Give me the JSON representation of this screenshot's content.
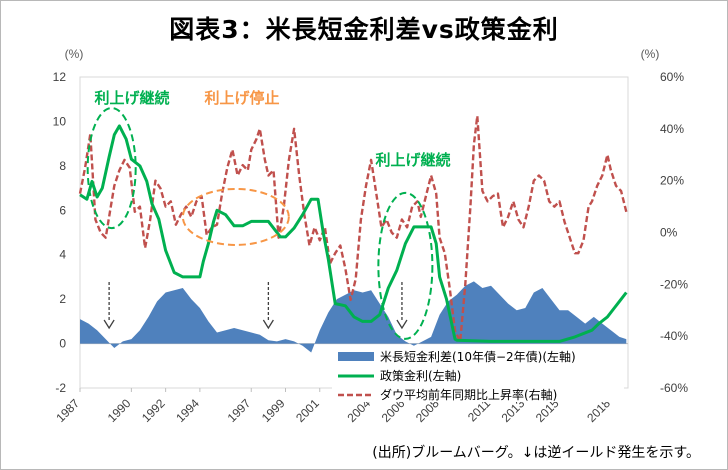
{
  "title": "図表3：米長短金利差vs政策金利",
  "source_note": "(出所)ブルームバーグ。↓は逆イールド発生を示す。",
  "chart_data": {
    "type": "area+line",
    "x_ticks": [
      "1987",
      "1990",
      "1992",
      "1994",
      "1997",
      "1999",
      "2001",
      "2004",
      "2006",
      "2008",
      "2011",
      "2013",
      "2015",
      "2018"
    ],
    "x_range": [
      1987.0,
      2019.0
    ],
    "left_axis": {
      "unit": "(%)",
      "ylim": [
        -2,
        12
      ],
      "ticks": [
        -2,
        0,
        2,
        4,
        6,
        8,
        10,
        12
      ]
    },
    "right_axis": {
      "unit": "(%)",
      "ylim": [
        -60,
        60
      ],
      "ticks": [
        "-60%",
        "-40%",
        "-20%",
        "0%",
        "20%",
        "40%",
        "60%"
      ]
    },
    "colors": {
      "spread": "#4f81bd",
      "policy": "#00b050",
      "dow": "#c0504d",
      "cont": "#00b050",
      "stop": "#f79646"
    },
    "legend": [
      "米長短金利差(10年債−2年債)(左軸)",
      "政策金利(左軸)",
      "ダウ平均前年同期比上昇率(右軸)"
    ],
    "annotations": {
      "cont1": "利上げ継続",
      "stop": "利上げ停止",
      "cont2": "利上げ継続"
    },
    "inversion_arrows_years": [
      1988.7,
      1998.0,
      2005.8
    ],
    "series": [
      {
        "name": "米長短金利差(10年債−2年債)(左軸)",
        "axis": "left",
        "style": "area",
        "points": [
          [
            1987.0,
            1.1
          ],
          [
            1987.5,
            0.9
          ],
          [
            1988.0,
            0.6
          ],
          [
            1988.5,
            0.2
          ],
          [
            1989.0,
            -0.2
          ],
          [
            1989.5,
            0.1
          ],
          [
            1990.0,
            0.2
          ],
          [
            1990.5,
            0.6
          ],
          [
            1991.0,
            1.2
          ],
          [
            1991.5,
            1.9
          ],
          [
            1992.0,
            2.3
          ],
          [
            1992.5,
            2.4
          ],
          [
            1993.0,
            2.5
          ],
          [
            1993.5,
            2.0
          ],
          [
            1994.0,
            1.6
          ],
          [
            1994.5,
            1.0
          ],
          [
            1995.0,
            0.5
          ],
          [
            1995.5,
            0.6
          ],
          [
            1996.0,
            0.7
          ],
          [
            1996.5,
            0.6
          ],
          [
            1997.0,
            0.5
          ],
          [
            1997.5,
            0.4
          ],
          [
            1998.0,
            0.15
          ],
          [
            1998.5,
            0.1
          ],
          [
            1999.0,
            0.2
          ],
          [
            1999.5,
            0.1
          ],
          [
            2000.0,
            -0.1
          ],
          [
            2000.5,
            -0.4
          ],
          [
            2001.0,
            0.6
          ],
          [
            2001.5,
            1.4
          ],
          [
            2002.0,
            2.0
          ],
          [
            2002.5,
            2.2
          ],
          [
            2003.0,
            2.4
          ],
          [
            2003.5,
            2.3
          ],
          [
            2004.0,
            2.4
          ],
          [
            2004.5,
            1.8
          ],
          [
            2005.0,
            1.2
          ],
          [
            2005.5,
            0.4
          ],
          [
            2006.0,
            0.1
          ],
          [
            2006.5,
            -0.1
          ],
          [
            2007.0,
            0.1
          ],
          [
            2007.5,
            0.3
          ],
          [
            2008.0,
            1.3
          ],
          [
            2008.5,
            1.9
          ],
          [
            2009.0,
            2.2
          ],
          [
            2009.5,
            2.6
          ],
          [
            2010.0,
            2.8
          ],
          [
            2010.5,
            2.5
          ],
          [
            2011.0,
            2.6
          ],
          [
            2011.5,
            2.2
          ],
          [
            2012.0,
            1.8
          ],
          [
            2012.5,
            1.5
          ],
          [
            2013.0,
            1.6
          ],
          [
            2013.5,
            2.3
          ],
          [
            2014.0,
            2.5
          ],
          [
            2014.5,
            2.0
          ],
          [
            2015.0,
            1.5
          ],
          [
            2015.5,
            1.5
          ],
          [
            2016.0,
            1.2
          ],
          [
            2016.5,
            0.9
          ],
          [
            2017.0,
            1.2
          ],
          [
            2017.5,
            0.9
          ],
          [
            2018.0,
            0.6
          ],
          [
            2018.5,
            0.3
          ],
          [
            2018.9,
            0.2
          ]
        ]
      },
      {
        "name": "政策金利(左軸)",
        "axis": "left",
        "style": "line",
        "points": [
          [
            1987.0,
            6.7
          ],
          [
            1987.4,
            6.5
          ],
          [
            1987.7,
            7.3
          ],
          [
            1988.0,
            6.6
          ],
          [
            1988.3,
            7.0
          ],
          [
            1988.7,
            8.4
          ],
          [
            1989.0,
            9.4
          ],
          [
            1989.3,
            9.8
          ],
          [
            1989.7,
            9.2
          ],
          [
            1990.0,
            8.3
          ],
          [
            1990.5,
            8.0
          ],
          [
            1990.9,
            7.3
          ],
          [
            1991.2,
            6.3
          ],
          [
            1991.6,
            5.6
          ],
          [
            1992.0,
            4.2
          ],
          [
            1992.5,
            3.2
          ],
          [
            1993.0,
            3.0
          ],
          [
            1993.5,
            3.0
          ],
          [
            1994.0,
            3.0
          ],
          [
            1994.2,
            3.7
          ],
          [
            1994.5,
            4.5
          ],
          [
            1994.8,
            5.5
          ],
          [
            1995.0,
            6.0
          ],
          [
            1995.5,
            5.8
          ],
          [
            1996.0,
            5.3
          ],
          [
            1996.5,
            5.3
          ],
          [
            1997.0,
            5.5
          ],
          [
            1997.5,
            5.5
          ],
          [
            1998.0,
            5.5
          ],
          [
            1998.7,
            4.8
          ],
          [
            1999.0,
            4.8
          ],
          [
            1999.5,
            5.2
          ],
          [
            2000.0,
            5.8
          ],
          [
            2000.5,
            6.5
          ],
          [
            2000.9,
            6.5
          ],
          [
            2001.2,
            5.0
          ],
          [
            2001.5,
            3.8
          ],
          [
            2001.9,
            1.8
          ],
          [
            2002.5,
            1.7
          ],
          [
            2003.0,
            1.2
          ],
          [
            2003.5,
            1.0
          ],
          [
            2004.0,
            1.0
          ],
          [
            2004.5,
            1.3
          ],
          [
            2005.0,
            2.5
          ],
          [
            2005.5,
            3.3
          ],
          [
            2006.0,
            4.5
          ],
          [
            2006.5,
            5.25
          ],
          [
            2007.0,
            5.25
          ],
          [
            2007.5,
            5.25
          ],
          [
            2007.8,
            4.5
          ],
          [
            2008.0,
            3.0
          ],
          [
            2008.4,
            2.0
          ],
          [
            2008.9,
            0.2
          ],
          [
            2009.0,
            0.15
          ],
          [
            2011.0,
            0.1
          ],
          [
            2013.0,
            0.1
          ],
          [
            2015.0,
            0.1
          ],
          [
            2015.9,
            0.3
          ],
          [
            2016.9,
            0.6
          ],
          [
            2017.3,
            0.9
          ],
          [
            2017.8,
            1.2
          ],
          [
            2018.2,
            1.6
          ],
          [
            2018.5,
            1.9
          ],
          [
            2018.9,
            2.3
          ]
        ]
      },
      {
        "name": "ダウ平均前年同期比上昇率(右軸)",
        "axis": "right",
        "style": "dashed",
        "points": [
          [
            1987.0,
            15
          ],
          [
            1987.3,
            25
          ],
          [
            1987.6,
            38
          ],
          [
            1987.9,
            5
          ],
          [
            1988.2,
            0
          ],
          [
            1988.5,
            -2
          ],
          [
            1988.8,
            10
          ],
          [
            1989.0,
            18
          ],
          [
            1989.3,
            24
          ],
          [
            1989.6,
            28
          ],
          [
            1989.9,
            25
          ],
          [
            1990.2,
            8
          ],
          [
            1990.5,
            10
          ],
          [
            1990.8,
            -6
          ],
          [
            1991.1,
            5
          ],
          [
            1991.4,
            20
          ],
          [
            1991.7,
            17
          ],
          [
            1992.0,
            10
          ],
          [
            1992.3,
            12
          ],
          [
            1992.6,
            3
          ],
          [
            1992.9,
            7
          ],
          [
            1993.2,
            10
          ],
          [
            1993.5,
            6
          ],
          [
            1993.8,
            12
          ],
          [
            1994.1,
            14
          ],
          [
            1994.4,
            -1
          ],
          [
            1994.7,
            2
          ],
          [
            1995.0,
            3
          ],
          [
            1995.3,
            15
          ],
          [
            1995.6,
            25
          ],
          [
            1995.9,
            32
          ],
          [
            1996.2,
            22
          ],
          [
            1996.5,
            26
          ],
          [
            1996.8,
            24
          ],
          [
            1997.0,
            32
          ],
          [
            1997.3,
            36
          ],
          [
            1997.5,
            40
          ],
          [
            1997.8,
            28
          ],
          [
            1998.0,
            22
          ],
          [
            1998.3,
            24
          ],
          [
            1998.6,
            -2
          ],
          [
            1998.9,
            10
          ],
          [
            1999.2,
            28
          ],
          [
            1999.5,
            40
          ],
          [
            1999.8,
            22
          ],
          [
            2000.1,
            7
          ],
          [
            2000.4,
            -5
          ],
          [
            2000.7,
            2
          ],
          [
            2001.0,
            -3
          ],
          [
            2001.3,
            2
          ],
          [
            2001.6,
            -12
          ],
          [
            2001.9,
            -8
          ],
          [
            2002.2,
            -5
          ],
          [
            2002.5,
            -14
          ],
          [
            2002.8,
            -26
          ],
          [
            2003.1,
            -18
          ],
          [
            2003.4,
            5
          ],
          [
            2003.7,
            18
          ],
          [
            2004.0,
            28
          ],
          [
            2004.3,
            15
          ],
          [
            2004.6,
            2
          ],
          [
            2004.9,
            5
          ],
          [
            2005.2,
            0
          ],
          [
            2005.5,
            -2
          ],
          [
            2005.8,
            5
          ],
          [
            2006.1,
            2
          ],
          [
            2006.4,
            10
          ],
          [
            2006.7,
            12
          ],
          [
            2006.9,
            6
          ],
          [
            2007.2,
            14
          ],
          [
            2007.5,
            22
          ],
          [
            2007.8,
            15
          ],
          [
            2008.0,
            -2
          ],
          [
            2008.3,
            -8
          ],
          [
            2008.6,
            -22
          ],
          [
            2008.9,
            -38
          ],
          [
            2009.2,
            -42
          ],
          [
            2009.5,
            -20
          ],
          [
            2009.8,
            10
          ],
          [
            2010.0,
            34
          ],
          [
            2010.2,
            45
          ],
          [
            2010.5,
            16
          ],
          [
            2010.8,
            12
          ],
          [
            2011.1,
            14
          ],
          [
            2011.4,
            15
          ],
          [
            2011.7,
            2
          ],
          [
            2012.0,
            6
          ],
          [
            2012.3,
            12
          ],
          [
            2012.6,
            5
          ],
          [
            2012.9,
            2
          ],
          [
            2013.2,
            10
          ],
          [
            2013.5,
            20
          ],
          [
            2013.8,
            22
          ],
          [
            2014.1,
            20
          ],
          [
            2014.4,
            12
          ],
          [
            2014.7,
            10
          ],
          [
            2015.0,
            12
          ],
          [
            2015.3,
            4
          ],
          [
            2015.6,
            -2
          ],
          [
            2015.9,
            -8
          ],
          [
            2016.1,
            -8
          ],
          [
            2016.4,
            -3
          ],
          [
            2016.7,
            10
          ],
          [
            2016.9,
            12
          ],
          [
            2017.2,
            18
          ],
          [
            2017.5,
            22
          ],
          [
            2017.8,
            30
          ],
          [
            2018.0,
            24
          ],
          [
            2018.3,
            18
          ],
          [
            2018.6,
            16
          ],
          [
            2018.9,
            8
          ]
        ]
      }
    ]
  }
}
